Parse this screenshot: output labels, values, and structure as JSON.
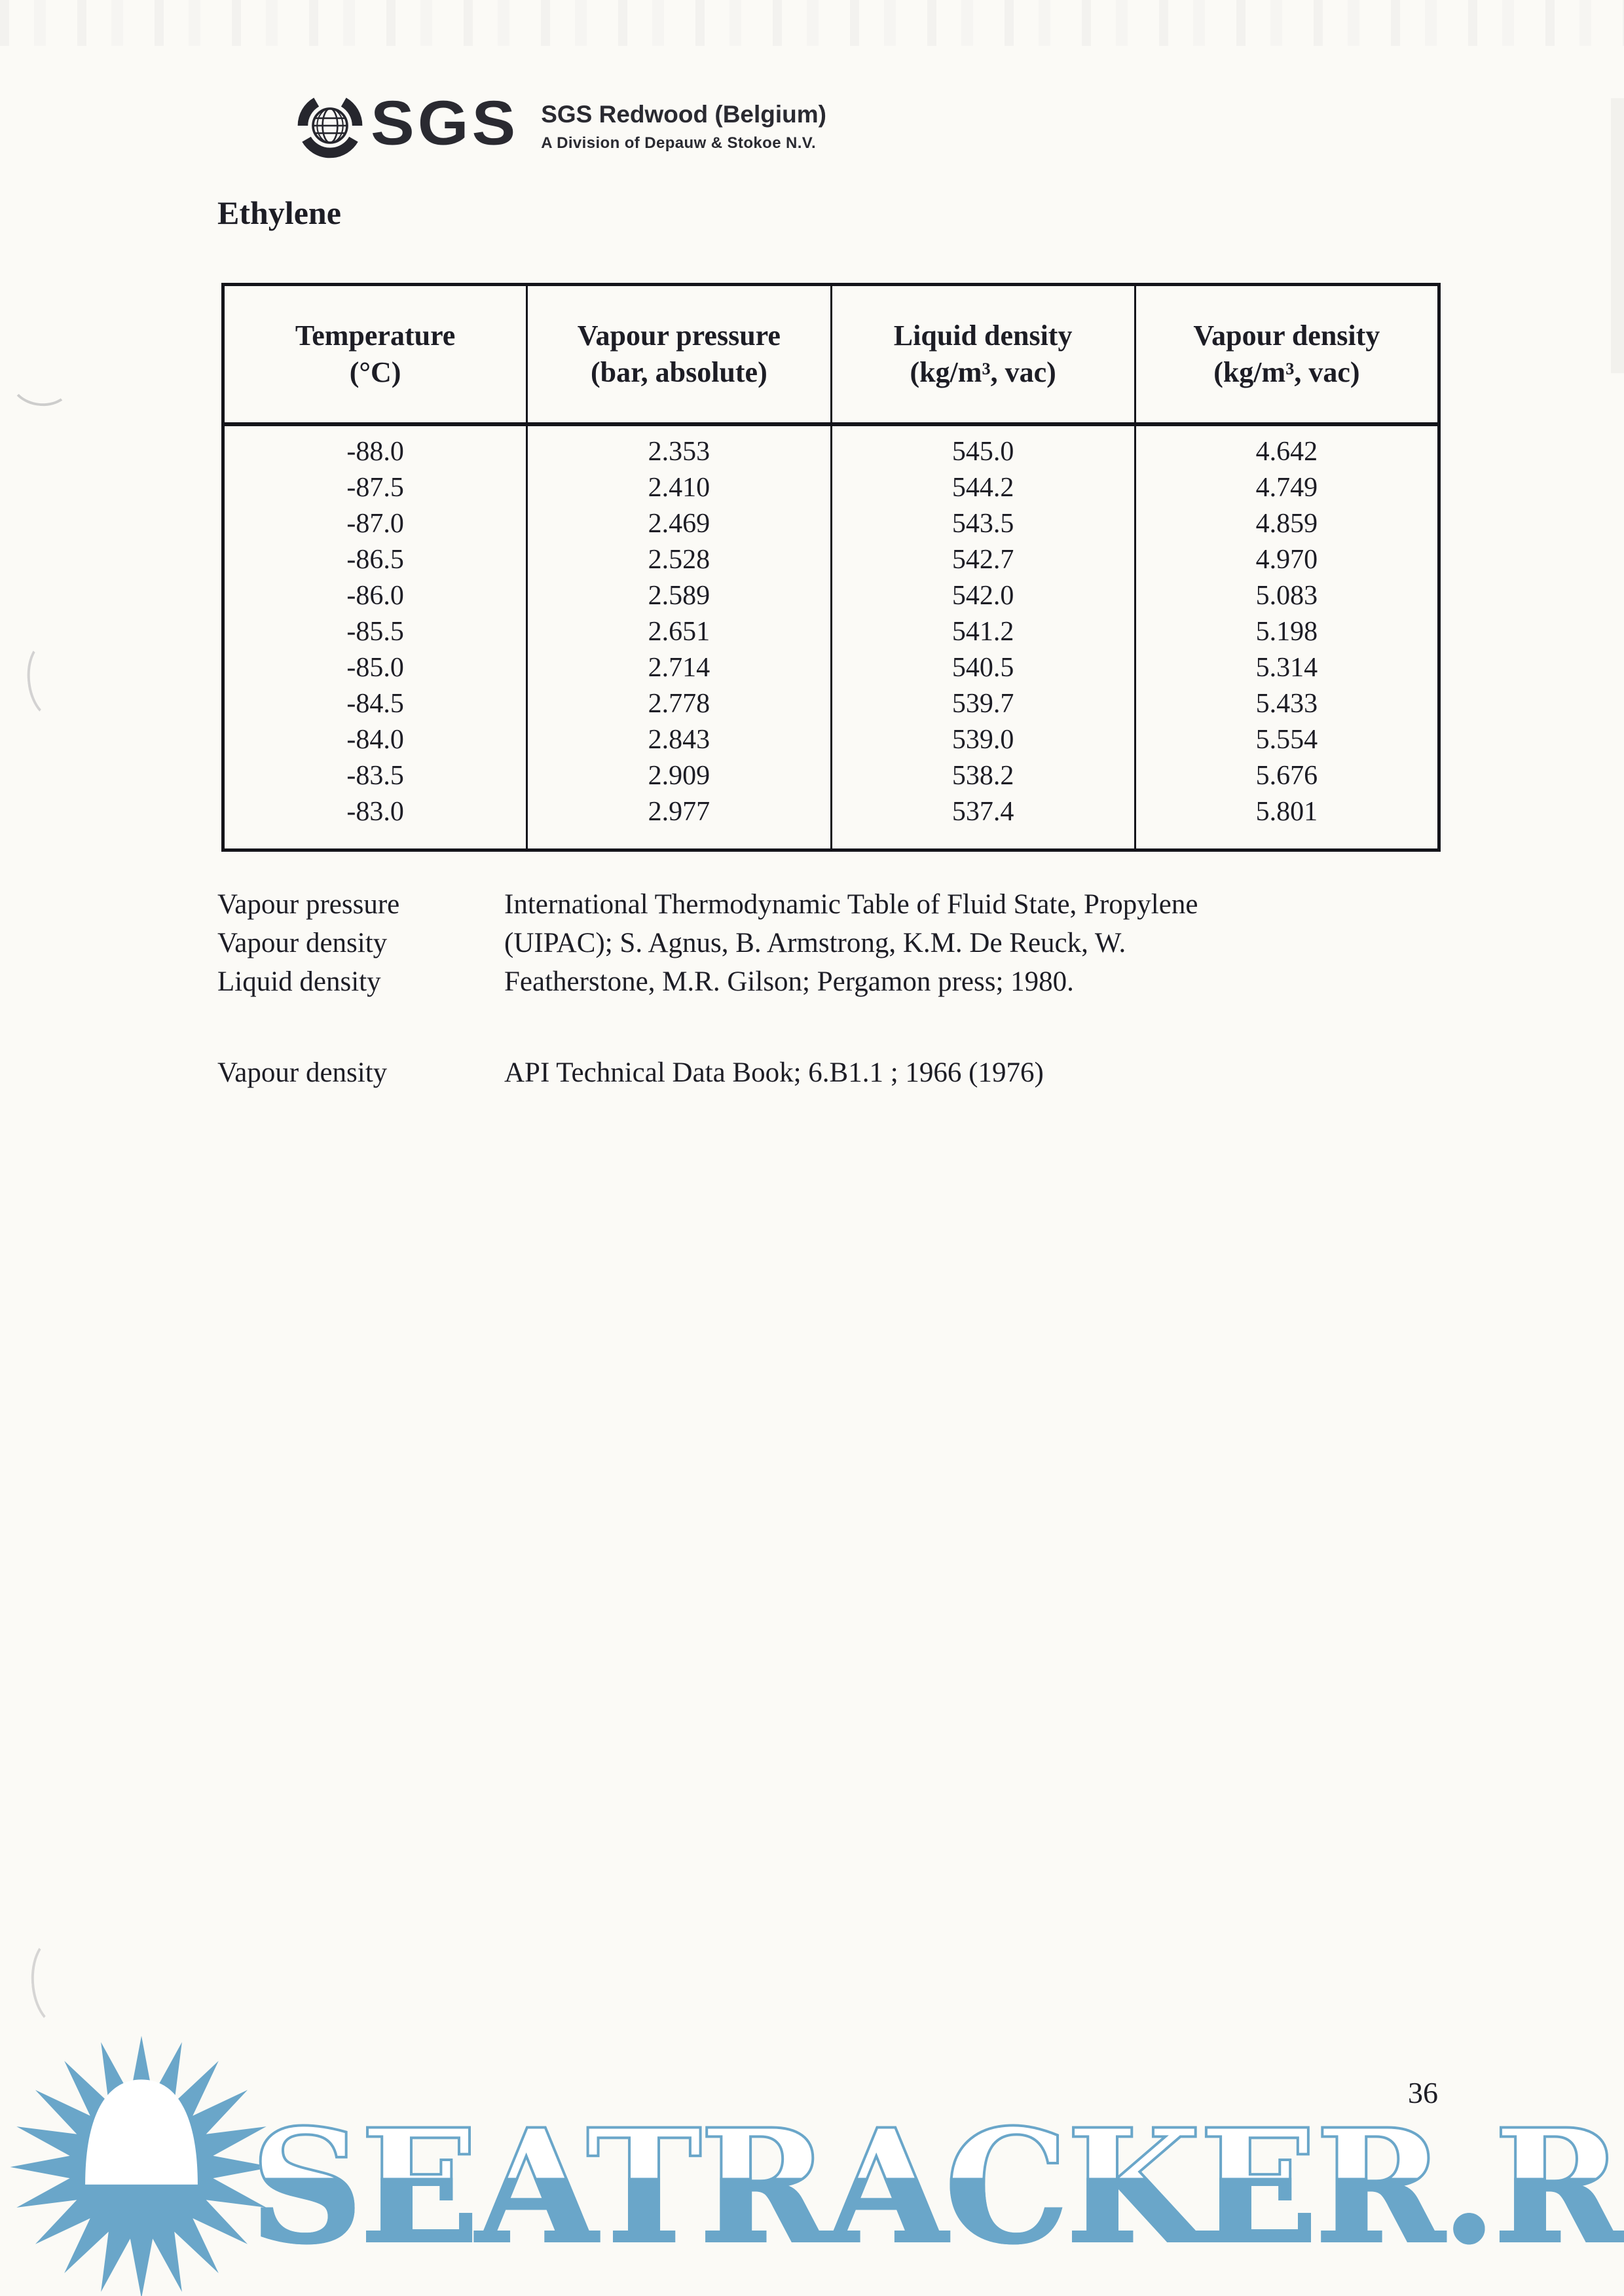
{
  "letterhead": {
    "logo_text": "SGS",
    "company": "SGS Redwood (Belgium)",
    "division": "A Division of Depauw & Stokoe N.V."
  },
  "page_title": "Ethylene",
  "table": {
    "columns": [
      {
        "label": "Temperature",
        "unit": "(°C)"
      },
      {
        "label": "Vapour pressure",
        "unit": "(bar, absolute)"
      },
      {
        "label": "Liquid density",
        "unit": "(kg/m³, vac)"
      },
      {
        "label": "Vapour density",
        "unit": "(kg/m³, vac)"
      }
    ],
    "rows": [
      [
        "-88.0",
        "2.353",
        "545.0",
        "4.642"
      ],
      [
        "-87.5",
        "2.410",
        "544.2",
        "4.749"
      ],
      [
        "-87.0",
        "2.469",
        "543.5",
        "4.859"
      ],
      [
        "-86.5",
        "2.528",
        "542.7",
        "4.970"
      ],
      [
        "-86.0",
        "2.589",
        "542.0",
        "5.083"
      ],
      [
        "-85.5",
        "2.651",
        "541.2",
        "5.198"
      ],
      [
        "-85.0",
        "2.714",
        "540.5",
        "5.314"
      ],
      [
        "-84.5",
        "2.778",
        "539.7",
        "5.433"
      ],
      [
        "-84.0",
        "2.843",
        "539.0",
        "5.554"
      ],
      [
        "-83.5",
        "2.909",
        "538.2",
        "5.676"
      ],
      [
        "-83.0",
        "2.977",
        "537.4",
        "5.801"
      ]
    ]
  },
  "references": [
    {
      "labels": [
        "Vapour pressure",
        "Vapour density",
        "Liquid density"
      ],
      "lines": [
        "International Thermodynamic Table of Fluid State, Propylene",
        "(UIPAC); S. Agnus, B. Armstrong, K.M. De Reuck, W.",
        "Featherstone, M.R. Gilson; Pergamon press; 1980."
      ]
    },
    {
      "labels": [
        "Vapour density"
      ],
      "lines": [
        "API Technical Data Book; 6.B1.1 ; 1966 (1976)"
      ]
    }
  ],
  "page_number": "36",
  "watermark": {
    "text": "SEATRACKER.RU",
    "color": "#6aa6c9",
    "icon": "sun-over-water-icon"
  },
  "colors": {
    "paper": "#fbfaf6",
    "ink": "#1d1d25",
    "table_border": "#14141a"
  }
}
